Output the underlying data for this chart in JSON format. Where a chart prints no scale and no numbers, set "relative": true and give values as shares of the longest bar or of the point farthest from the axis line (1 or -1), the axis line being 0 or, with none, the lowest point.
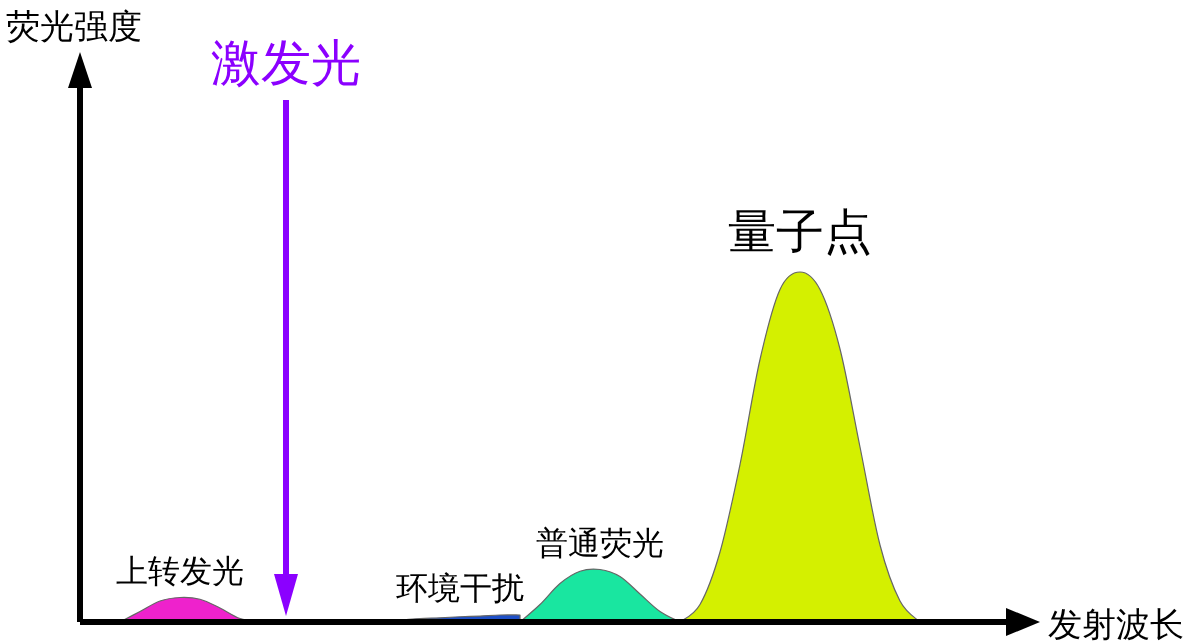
{
  "chart_data": {
    "type": "area",
    "relative": true,
    "xlabel": "发射波长",
    "annotations": [
      "激发光",
      "荧光强度"
    ],
    "categories": [
      null,
      null,
      null,
      null,
      null,
      null,
      null,
      null,
      null,
      null,
      null,
      null,
      null,
      null,
      null,
      null,
      null,
      null,
      null,
      null,
      null,
      null,
      null,
      null,
      null,
      null,
      null,
      null,
      null,
      null,
      null,
      null,
      null,
      null,
      null,
      null,
      null,
      null,
      null,
      null,
      null,
      null,
      null,
      null,
      null,
      null,
      null
    ],
    "series": [
      {
        "name": "上转发光",
        "color": "#ee22cc",
        "values": [
          null,
          null,
          0,
          0.03,
          0.06,
          0.07,
          0.065,
          0.04,
          0.01,
          0,
          null,
          null,
          null,
          null,
          null,
          null,
          null,
          null,
          null,
          null,
          null,
          null,
          null,
          null,
          null,
          null,
          null,
          null,
          null,
          null,
          null,
          null,
          null,
          null,
          null,
          null,
          null,
          null,
          null,
          null,
          null,
          null,
          null,
          null,
          null,
          null,
          null
        ]
      },
      {
        "name": "环境干扰",
        "color": "#1e50c8",
        "values": [
          null,
          null,
          null,
          null,
          null,
          null,
          null,
          null,
          null,
          null,
          null,
          null,
          null,
          null,
          0,
          0.003,
          0.006,
          0.01,
          0.012,
          0.015,
          0.017,
          0.02,
          0.02,
          null,
          null,
          null,
          null,
          null,
          null,
          null,
          null,
          null,
          null,
          null,
          null,
          null,
          null,
          null,
          null,
          null,
          null,
          null,
          null,
          null,
          null,
          null,
          null
        ]
      },
      {
        "name": "普通荧光",
        "color": "#19e6a0",
        "values": [
          null,
          null,
          null,
          null,
          null,
          null,
          null,
          null,
          null,
          null,
          null,
          null,
          null,
          null,
          null,
          null,
          null,
          null,
          null,
          null,
          null,
          null,
          0,
          0.05,
          0.11,
          0.145,
          0.15,
          0.13,
          0.08,
          0.03,
          0,
          null,
          null,
          null,
          null,
          null,
          null,
          null,
          null,
          null,
          null,
          null,
          null,
          null,
          null,
          null,
          null
        ]
      },
      {
        "name": "量子点",
        "color": "#d4f000",
        "values": [
          null,
          null,
          null,
          null,
          null,
          null,
          null,
          null,
          null,
          null,
          null,
          null,
          null,
          null,
          null,
          null,
          null,
          null,
          null,
          null,
          null,
          null,
          null,
          null,
          null,
          null,
          null,
          null,
          null,
          null,
          0,
          0.05,
          0.2,
          0.45,
          0.75,
          0.95,
          1,
          0.95,
          0.78,
          0.5,
          0.22,
          0.06,
          0,
          null,
          null,
          null,
          null
        ]
      }
    ]
  }
}
